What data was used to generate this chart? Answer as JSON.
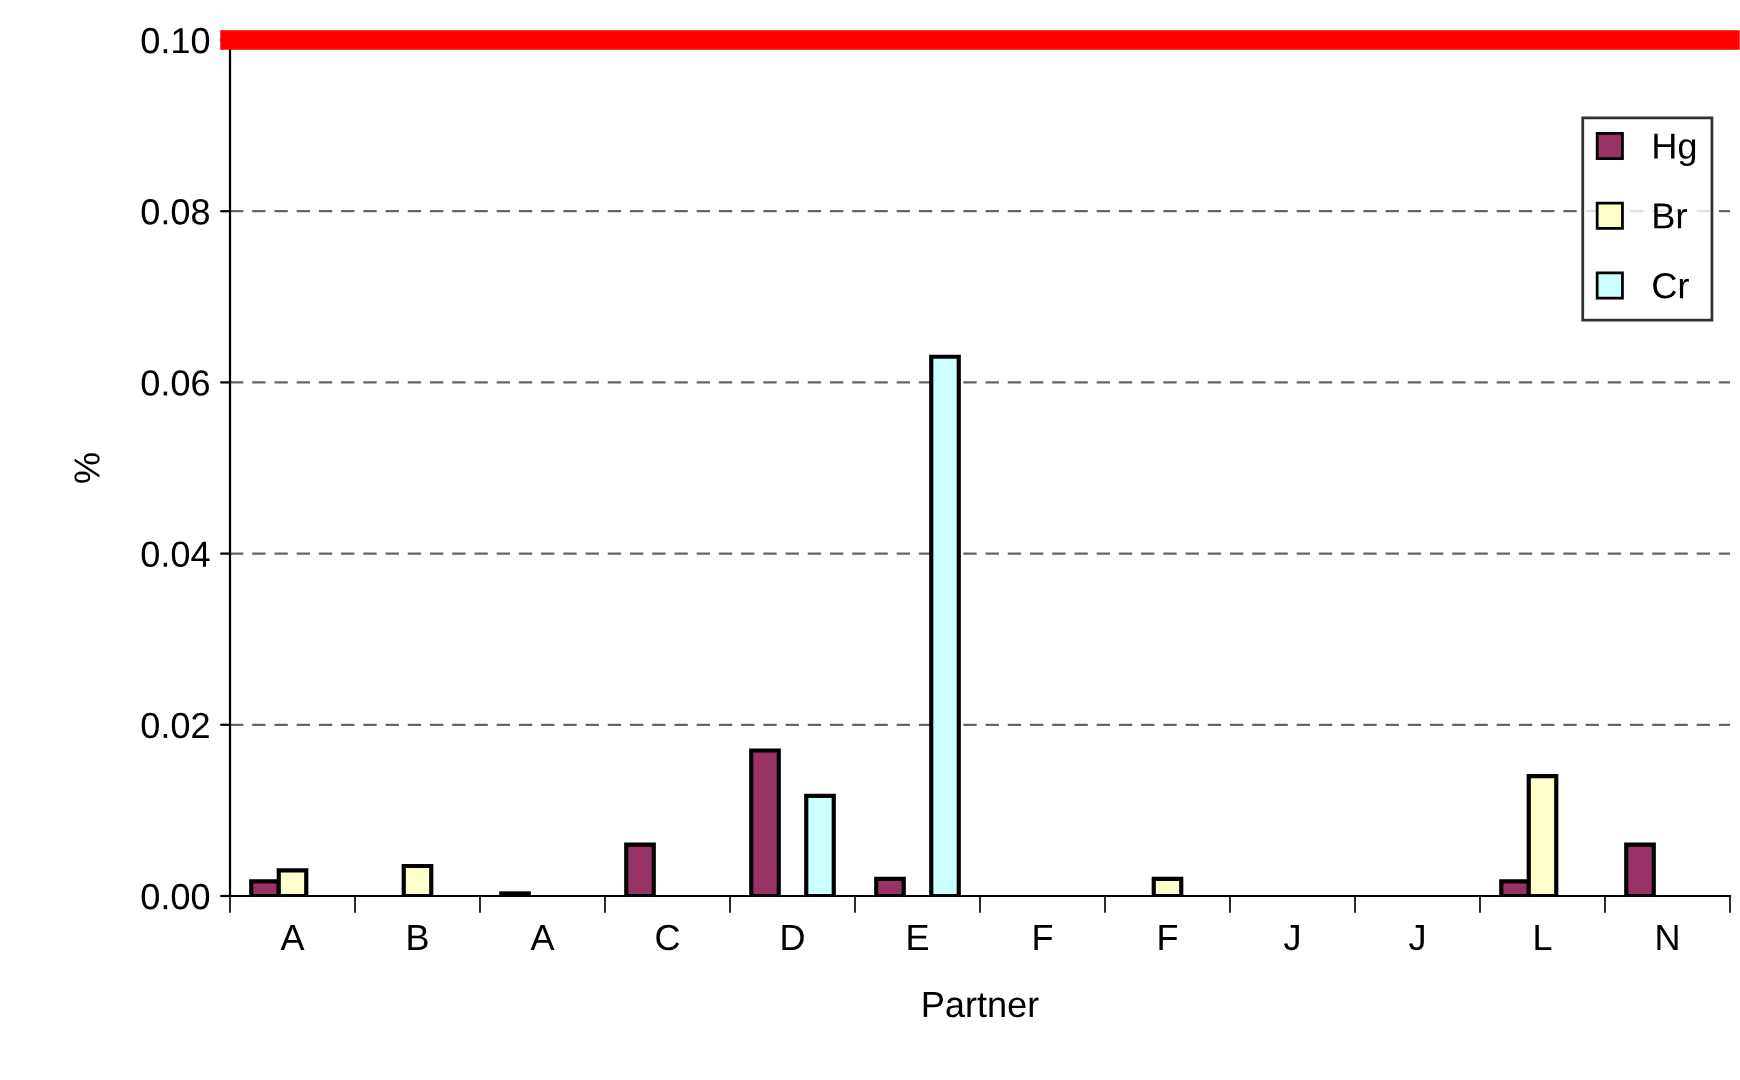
{
  "chart_data": {
    "type": "bar",
    "xlabel": "Partner",
    "ylabel": "%",
    "categories": [
      "A",
      "B",
      "A",
      "C",
      "D",
      "E",
      "F",
      "F",
      "J",
      "J",
      "L",
      "N"
    ],
    "series": [
      {
        "name": "Hg",
        "color": "#993366",
        "values": [
          0.0017,
          null,
          0.0003,
          0.006,
          0.017,
          0.002,
          null,
          null,
          null,
          null,
          0.0017,
          0.006
        ]
      },
      {
        "name": "Br",
        "color": "#ffffcc",
        "values": [
          0.003,
          0.0035,
          null,
          null,
          null,
          null,
          null,
          0.002,
          null,
          null,
          0.014,
          null
        ]
      },
      {
        "name": "Cr",
        "color": "#ccffff",
        "values": [
          null,
          null,
          null,
          null,
          0.0117,
          0.063,
          null,
          null,
          null,
          null,
          null,
          null
        ]
      }
    ],
    "ylim": [
      0,
      0.1
    ],
    "yticks": [
      {
        "value": 0,
        "label": "0.00"
      },
      {
        "value": 0.02,
        "label": "0.02"
      },
      {
        "value": 0.04,
        "label": "0.04"
      },
      {
        "value": 0.06,
        "label": "0.06"
      },
      {
        "value": 0.08,
        "label": "0.08"
      },
      {
        "value": 0.1,
        "label": "0.10"
      }
    ],
    "grid": "y",
    "legend": "top right",
    "ref_lines": [
      {
        "axis": "y",
        "value": 0.1,
        "color": "#ff0000"
      }
    ]
  }
}
